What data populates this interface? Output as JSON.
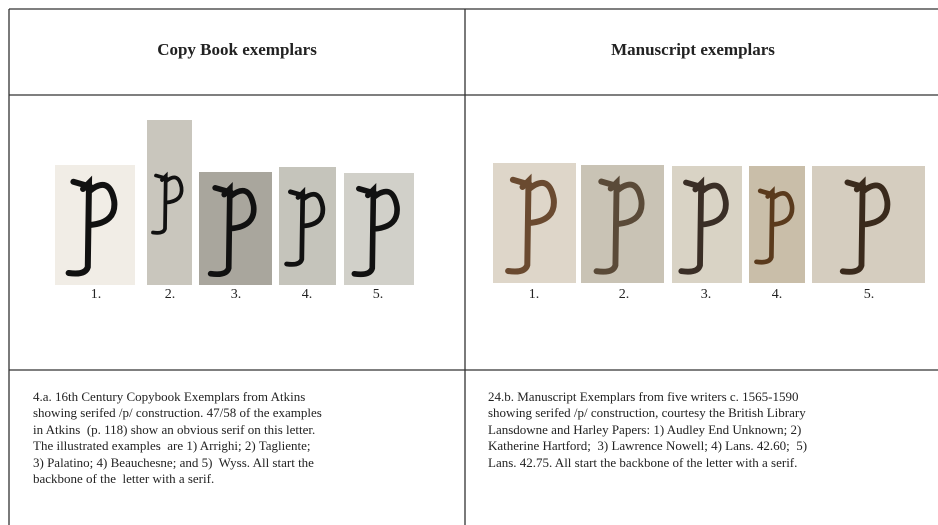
{
  "table": {
    "headers": [
      "Copy Book exemplars",
      "Manuscript exemplars"
    ],
    "exemplars": [
      {
        "labels": [
          "1.",
          "2.",
          "3.",
          "4.",
          "5."
        ]
      },
      {
        "labels": [
          "1.",
          "2.",
          "3.",
          "4.",
          "5."
        ]
      }
    ],
    "captions": [
      [
        "4.a. 16th Century Copybook Exemplars from Atkins",
        "showing serifed /p/ construction. 47/58 of the examples",
        "in Atkins  (p. 118) show an obvious serif on this letter.",
        "The illustrated examples  are 1) Arrighi; 2) Tagliente;",
        "3) Palatino; 4) Beauchesne; and 5)  Wyss. All start the",
        "backbone of the  letter with a serif."
      ],
      [
        "24.b. Manuscript Exemplars from five writers c. 1565-1590",
        "showing serifed /p/ construction, courtesy the British Library",
        "Lansdowne and Harley Papers: 1) Audley End Unknown; 2)",
        "Katherine Hartford;  3) Lawrence Nowell; 4) Lans. 42.60;  5)",
        "Lans. 42.75. All start the backbone of the letter with a serif."
      ]
    ]
  }
}
